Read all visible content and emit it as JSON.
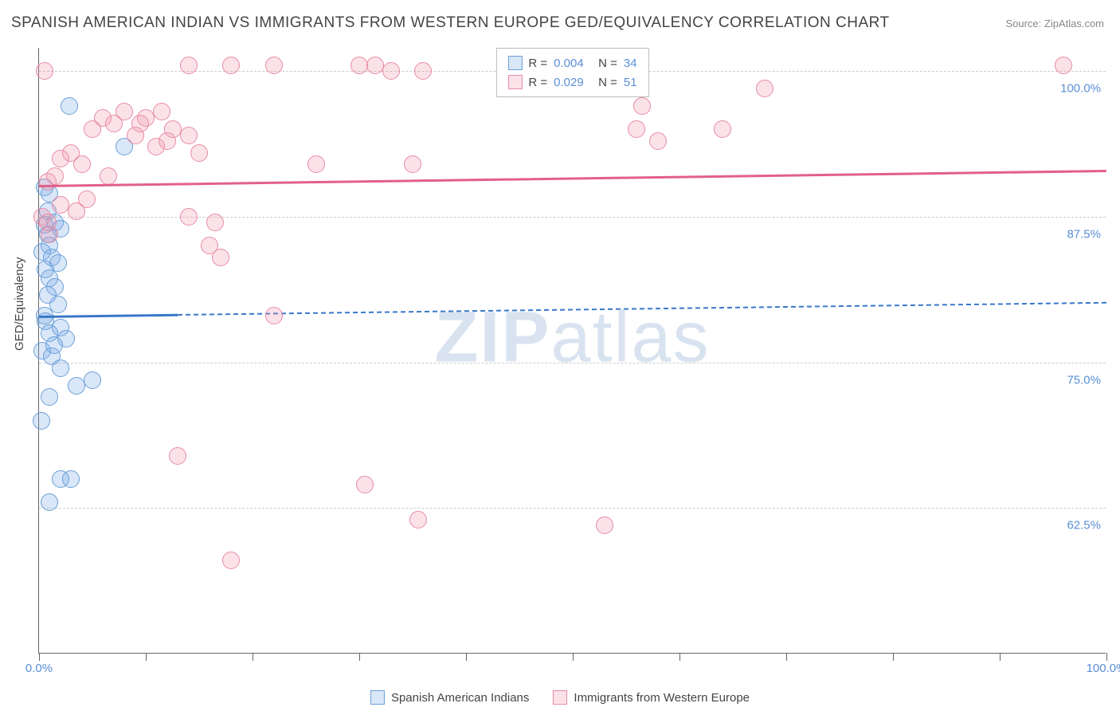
{
  "title": "SPANISH AMERICAN INDIAN VS IMMIGRANTS FROM WESTERN EUROPE GED/EQUIVALENCY CORRELATION CHART",
  "source": "Source: ZipAtlas.com",
  "watermark_bold": "ZIP",
  "watermark_light": "atlas",
  "chart": {
    "type": "scatter-with-trend",
    "y_axis": {
      "title": "GED/Equivalency",
      "min": 50.0,
      "max": 102.0,
      "gridlines": [
        62.5,
        75.0,
        87.5,
        100.0
      ],
      "labels": [
        "62.5%",
        "75.0%",
        "87.5%",
        "100.0%"
      ],
      "label_color": "#5b8fd6",
      "grid_color": "#cccccc"
    },
    "x_axis": {
      "min": 0.0,
      "max": 100.0,
      "ticks": [
        0,
        10,
        20,
        30,
        40,
        50,
        60,
        70,
        80,
        90,
        100
      ],
      "label_left": "0.0%",
      "label_right": "100.0%",
      "label_color": "#5b8fd6"
    },
    "series": [
      {
        "name": "Spanish American Indians",
        "color_fill": "rgba(120,170,230,0.28)",
        "color_stroke": "#6a9fd8",
        "R": "0.004",
        "N": "34",
        "trend": {
          "y_start": 79.0,
          "y_end": 80.2,
          "solid_until_x": 13.0,
          "color": "#3a78c9"
        },
        "points": [
          [
            0.5,
            86.8
          ],
          [
            0.8,
            86.0
          ],
          [
            1.0,
            85.0
          ],
          [
            1.2,
            84.0
          ],
          [
            0.6,
            83.0
          ],
          [
            1.0,
            82.2
          ],
          [
            1.5,
            81.5
          ],
          [
            0.8,
            80.8
          ],
          [
            1.8,
            80.0
          ],
          [
            0.5,
            79.0
          ],
          [
            2.0,
            78.0
          ],
          [
            1.0,
            77.5
          ],
          [
            2.5,
            77.0
          ],
          [
            0.3,
            76.0
          ],
          [
            1.2,
            75.5
          ],
          [
            2.0,
            74.5
          ],
          [
            3.5,
            73.0
          ],
          [
            1.0,
            72.0
          ],
          [
            5.0,
            73.5
          ],
          [
            0.2,
            70.0
          ],
          [
            2.0,
            65.0
          ],
          [
            3.0,
            65.0
          ],
          [
            1.0,
            63.0
          ],
          [
            0.8,
            88.0
          ],
          [
            1.5,
            87.0
          ],
          [
            2.8,
            97.0
          ],
          [
            8.0,
            93.5
          ],
          [
            0.5,
            90.0
          ],
          [
            1.0,
            89.5
          ],
          [
            2.0,
            86.5
          ],
          [
            0.3,
            84.5
          ],
          [
            1.8,
            83.5
          ],
          [
            0.6,
            78.5
          ],
          [
            1.4,
            76.5
          ]
        ]
      },
      {
        "name": "Immigrants from Western Europe",
        "color_fill": "rgba(240,150,175,0.28)",
        "color_stroke": "#e88aa5",
        "R": "0.029",
        "N": "51",
        "trend": {
          "y_start": 90.2,
          "y_end": 91.5,
          "solid_until_x": 100.0,
          "color": "#e26088"
        },
        "points": [
          [
            0.5,
            100.0
          ],
          [
            14.0,
            100.5
          ],
          [
            18.0,
            100.5
          ],
          [
            22.0,
            100.5
          ],
          [
            30.0,
            100.5
          ],
          [
            31.5,
            100.5
          ],
          [
            33.0,
            100.0
          ],
          [
            36.0,
            100.0
          ],
          [
            68.0,
            98.5
          ],
          [
            96.0,
            100.5
          ],
          [
            0.8,
            90.5
          ],
          [
            1.5,
            91.0
          ],
          [
            2.0,
            92.5
          ],
          [
            3.0,
            93.0
          ],
          [
            4.0,
            92.0
          ],
          [
            5.0,
            95.0
          ],
          [
            6.0,
            96.0
          ],
          [
            7.0,
            95.5
          ],
          [
            8.0,
            96.5
          ],
          [
            9.0,
            94.5
          ],
          [
            10.0,
            96.0
          ],
          [
            11.0,
            93.5
          ],
          [
            12.0,
            94.0
          ],
          [
            12.5,
            95.0
          ],
          [
            14.0,
            94.5
          ],
          [
            15.0,
            93.0
          ],
          [
            16.5,
            87.0
          ],
          [
            26.0,
            92.0
          ],
          [
            35.0,
            92.0
          ],
          [
            56.0,
            95.0
          ],
          [
            56.5,
            97.0
          ],
          [
            0.3,
            87.5
          ],
          [
            0.8,
            87.0
          ],
          [
            2.0,
            88.5
          ],
          [
            3.5,
            88.0
          ],
          [
            14.0,
            87.5
          ],
          [
            16.0,
            85.0
          ],
          [
            17.0,
            84.0
          ],
          [
            22.0,
            79.0
          ],
          [
            13.0,
            67.0
          ],
          [
            30.5,
            64.5
          ],
          [
            18.0,
            58.0
          ],
          [
            35.5,
            61.5
          ],
          [
            53.0,
            61.0
          ],
          [
            1.0,
            86.0
          ],
          [
            4.5,
            89.0
          ],
          [
            6.5,
            91.0
          ],
          [
            9.5,
            95.5
          ],
          [
            11.5,
            96.5
          ],
          [
            64.0,
            95.0
          ],
          [
            58.0,
            94.0
          ]
        ]
      }
    ],
    "legend_top": {
      "R_label": "R =",
      "N_label": "N =",
      "text_color": "#444444",
      "value_color": "#5b8fd6"
    },
    "legend_bottom_items": [
      "Spanish American Indians",
      "Immigrants from Western Europe"
    ]
  }
}
